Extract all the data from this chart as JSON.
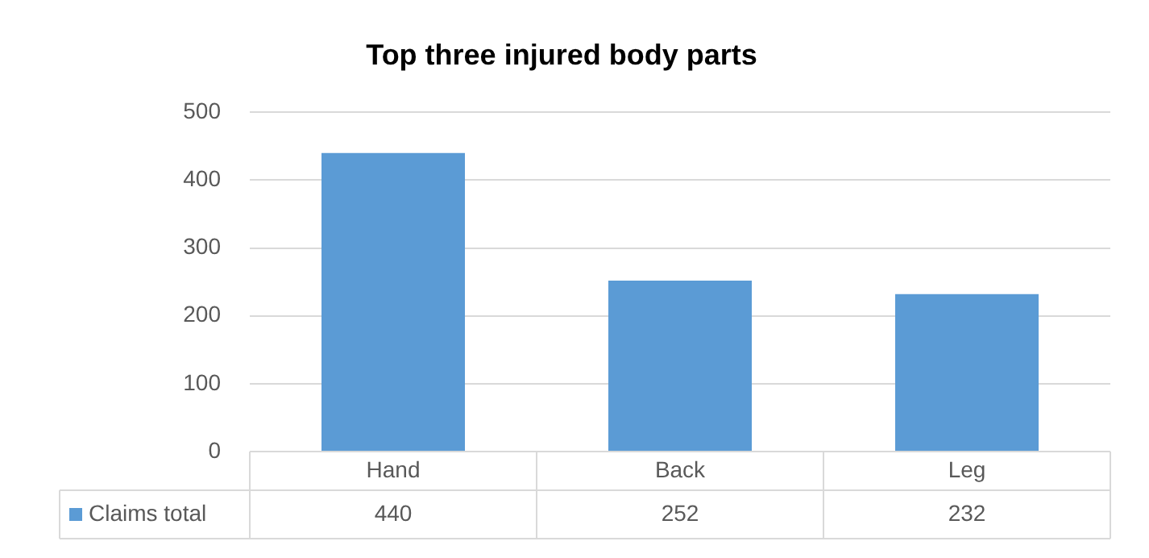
{
  "chart_data": {
    "type": "bar",
    "title": "Top three injured body parts",
    "categories": [
      "Hand",
      "Back",
      "Leg"
    ],
    "series": [
      {
        "name": "Claims total",
        "color": "#5b9bd5",
        "values": [
          440,
          252,
          232
        ]
      }
    ],
    "ylim": [
      0,
      500
    ],
    "yticks": [
      0,
      100,
      200,
      300,
      400,
      500
    ],
    "grid": "y",
    "legend": "bottom",
    "data_labels": true
  }
}
